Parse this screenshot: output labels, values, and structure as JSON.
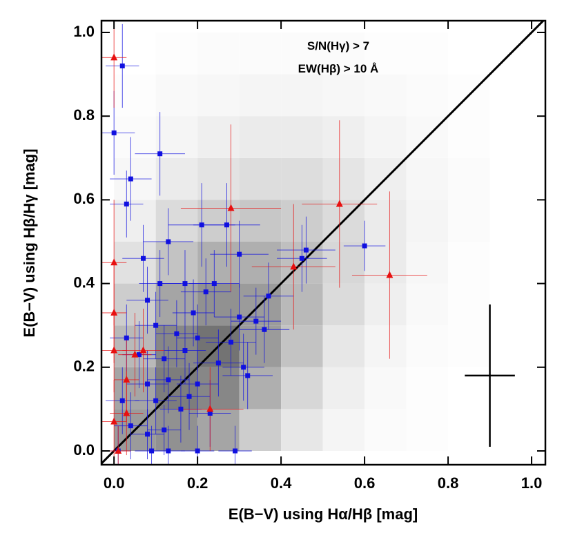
{
  "chart_data": {
    "type": "scatter",
    "xlabel": "E(B−V) using Hα/Hβ [mag]",
    "ylabel": "E(B−V) using Hβ/Hγ [mag]",
    "annotations": [
      "S/N(Hγ) > 7",
      "EW(Hβ) > 10 Å"
    ],
    "xlim": [
      -0.03,
      1.033
    ],
    "ylim": [
      -0.033,
      1.028
    ],
    "xticks": [
      {
        "value": 0,
        "label": "0.0"
      },
      {
        "value": 0.2,
        "label": "0.2"
      },
      {
        "value": 0.4,
        "label": "0.4"
      },
      {
        "value": 0.6,
        "label": "0.6"
      },
      {
        "value": 0.8,
        "label": "0.8"
      },
      {
        "value": 1,
        "label": "1.0"
      }
    ],
    "yticks": [
      {
        "value": 0,
        "label": "0.0"
      },
      {
        "value": 0.2,
        "label": "0.2"
      },
      {
        "value": 0.4,
        "label": "0.4"
      },
      {
        "value": 0.6,
        "label": "0.6"
      },
      {
        "value": 0.8,
        "label": "0.8"
      },
      {
        "value": 1,
        "label": "1.0"
      }
    ],
    "diagonal": true,
    "density": {
      "xbins": [
        0,
        0.1,
        0.2,
        0.3,
        0.4,
        0.5,
        0.6,
        0.7,
        0.8,
        0.9,
        1.0
      ],
      "ybins": [
        0,
        0.1,
        0.2,
        0.3,
        0.4,
        0.5,
        0.6,
        0.7,
        0.8,
        0.9,
        1.0
      ],
      "values": [
        [
          0.5,
          0.55,
          0.45,
          0.25,
          0.12,
          0.05,
          0.02,
          0.01,
          0,
          0
        ],
        [
          0.45,
          0.65,
          0.6,
          0.4,
          0.2,
          0.08,
          0.03,
          0.01,
          0,
          0
        ],
        [
          0.35,
          0.6,
          0.7,
          0.5,
          0.3,
          0.12,
          0.05,
          0.02,
          0.01,
          0
        ],
        [
          0.25,
          0.45,
          0.55,
          0.5,
          0.35,
          0.18,
          0.08,
          0.03,
          0.01,
          0
        ],
        [
          0.15,
          0.3,
          0.4,
          0.4,
          0.32,
          0.2,
          0.1,
          0.04,
          0.01,
          0
        ],
        [
          0.08,
          0.18,
          0.25,
          0.28,
          0.25,
          0.18,
          0.1,
          0.05,
          0.02,
          0
        ],
        [
          0.04,
          0.1,
          0.14,
          0.17,
          0.17,
          0.13,
          0.08,
          0.04,
          0.02,
          0
        ],
        [
          0.02,
          0.05,
          0.08,
          0.1,
          0.1,
          0.08,
          0.05,
          0.03,
          0.01,
          0
        ],
        [
          0.01,
          0.03,
          0.04,
          0.05,
          0.05,
          0.04,
          0.03,
          0.02,
          0.01,
          0
        ],
        [
          0,
          0.01,
          0.02,
          0.02,
          0.02,
          0.02,
          0.01,
          0.01,
          0,
          0
        ]
      ]
    },
    "typical_error": {
      "x": 0.9,
      "y": 0.18,
      "xerr": 0.06,
      "yerr": 0.17
    },
    "series": [
      {
        "color": "#1010e0",
        "marker": "square",
        "x": [
          0.02,
          0,
          0.11,
          0.04,
          0.03,
          0.13,
          0.21,
          0.27,
          0.3,
          0.37,
          0.46,
          0.6,
          0.45,
          0.07,
          0.11,
          0.17,
          0.22,
          0.24,
          0.08,
          0.19,
          0.1,
          0.3,
          0.34,
          0.03,
          0.15,
          0.2,
          0.28,
          0.36,
          0.06,
          0.12,
          0.17,
          0.25,
          0.31,
          0.08,
          0.13,
          0.2,
          0.02,
          0.1,
          0.16,
          0.23,
          0.04,
          0.08,
          0.12,
          0.01,
          0.09,
          0.13,
          0.2,
          0.29,
          0.32,
          0.18
        ],
        "values": [
          0.92,
          0.76,
          0.71,
          0.65,
          0.59,
          0.5,
          0.54,
          0.54,
          0.47,
          0.37,
          0.48,
          0.49,
          0.46,
          0.46,
          0.4,
          0.4,
          0.38,
          0.4,
          0.36,
          0.33,
          0.3,
          0.32,
          0.31,
          0.27,
          0.28,
          0.27,
          0.26,
          0.29,
          0.23,
          0.22,
          0.24,
          0.21,
          0.2,
          0.16,
          0.17,
          0.16,
          0.12,
          0.12,
          0.1,
          0.09,
          0.06,
          0.04,
          0.05,
          0,
          0,
          0,
          0,
          0,
          0.18,
          0.13
        ],
        "xerr": [
          0.04,
          0.05,
          0.06,
          0.05,
          0.04,
          0.06,
          0.08,
          0.08,
          0.07,
          0.06,
          0.07,
          0.05,
          0.06,
          0.05,
          0.05,
          0.06,
          0.06,
          0.06,
          0.05,
          0.05,
          0.05,
          0.06,
          0.06,
          0.04,
          0.05,
          0.05,
          0.06,
          0.06,
          0.04,
          0.05,
          0.05,
          0.06,
          0.05,
          0.05,
          0.05,
          0.05,
          0.04,
          0.05,
          0.05,
          0.05,
          0.04,
          0.04,
          0.04,
          0.03,
          0.04,
          0.04,
          0.04,
          0.04,
          0.06,
          0.05
        ],
        "yerr": [
          0.1,
          0.1,
          0.1,
          0.1,
          0.08,
          0.08,
          0.1,
          0.1,
          0.08,
          0.08,
          0.08,
          0.06,
          0.08,
          0.08,
          0.08,
          0.08,
          0.08,
          0.08,
          0.08,
          0.08,
          0.08,
          0.08,
          0.08,
          0.08,
          0.08,
          0.08,
          0.08,
          0.08,
          0.08,
          0.08,
          0.08,
          0.08,
          0.08,
          0.08,
          0.08,
          0.08,
          0.08,
          0.08,
          0.08,
          0.08,
          0.08,
          0.06,
          0.06,
          0.06,
          0.06,
          0.06,
          0.06,
          0.06,
          0.08,
          0.08
        ]
      },
      {
        "color": "#e81010",
        "marker": "triangle",
        "x": [
          0,
          0,
          0,
          0,
          0.03,
          0.05,
          0.07,
          0,
          0.03,
          0.28,
          0.43,
          0.54,
          0.66,
          0.23,
          0.01
        ],
        "values": [
          0.94,
          0.45,
          0.33,
          0.24,
          0.17,
          0.23,
          0.24,
          0.07,
          0.09,
          0.58,
          0.44,
          0.59,
          0.42,
          0.1,
          0
        ],
        "xerr": [
          0.03,
          0.03,
          0.03,
          0.03,
          0.03,
          0.04,
          0.05,
          0.03,
          0.04,
          0.12,
          0.1,
          0.09,
          0.09,
          0.08,
          0.03
        ],
        "yerr": [
          0.12,
          0.15,
          0.12,
          0.1,
          0.1,
          0.1,
          0.1,
          0.1,
          0.1,
          0.2,
          0.15,
          0.2,
          0.2,
          0.1,
          0.06
        ]
      }
    ]
  }
}
